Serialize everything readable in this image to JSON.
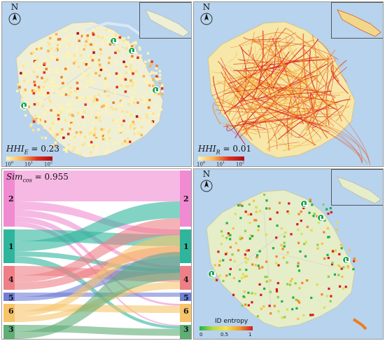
{
  "panels": {
    "top_left": {
      "stat_symbol": "HHI",
      "stat_subscript": "E",
      "stat_value": " = 0.23",
      "colorbar_ticks": [
        {
          "base": "10",
          "exp": "0"
        },
        {
          "base": "10",
          "exp": "1"
        },
        {
          "base": "10",
          "exp": "2"
        }
      ],
      "north_label": "N"
    },
    "top_right": {
      "stat_symbol": "HHI",
      "stat_subscript": "R",
      "stat_value": " = 0.01",
      "colorbar_ticks": [
        {
          "base": "10",
          "exp": "0"
        },
        {
          "base": "10",
          "exp": "1"
        },
        {
          "base": "10",
          "exp": "2"
        }
      ],
      "north_label": "N"
    },
    "bottom_left": {
      "stat_symbol": "Sim",
      "stat_subscript": "cos",
      "stat_value": " = 0.955",
      "left_labels": [
        "2",
        "1",
        "4",
        "5",
        "6",
        "3"
      ],
      "right_labels": [
        "2",
        "1",
        "4",
        "5",
        "6",
        "3"
      ]
    },
    "bottom_right": {
      "legend_title": "ID entropy",
      "legend_ticks": [
        "0",
        "0.5",
        "1"
      ],
      "north_label": "N"
    }
  },
  "colors": {
    "water": "#b7d3ee",
    "land": "#e8ead9",
    "cluster_2": "#f08bd2",
    "cluster_1": "#2fb59c",
    "cluster_4": "#ef7f86",
    "cluster_5": "#6f7fd6",
    "cluster_6": "#f7c46a",
    "cluster_3": "#5fae76"
  }
}
